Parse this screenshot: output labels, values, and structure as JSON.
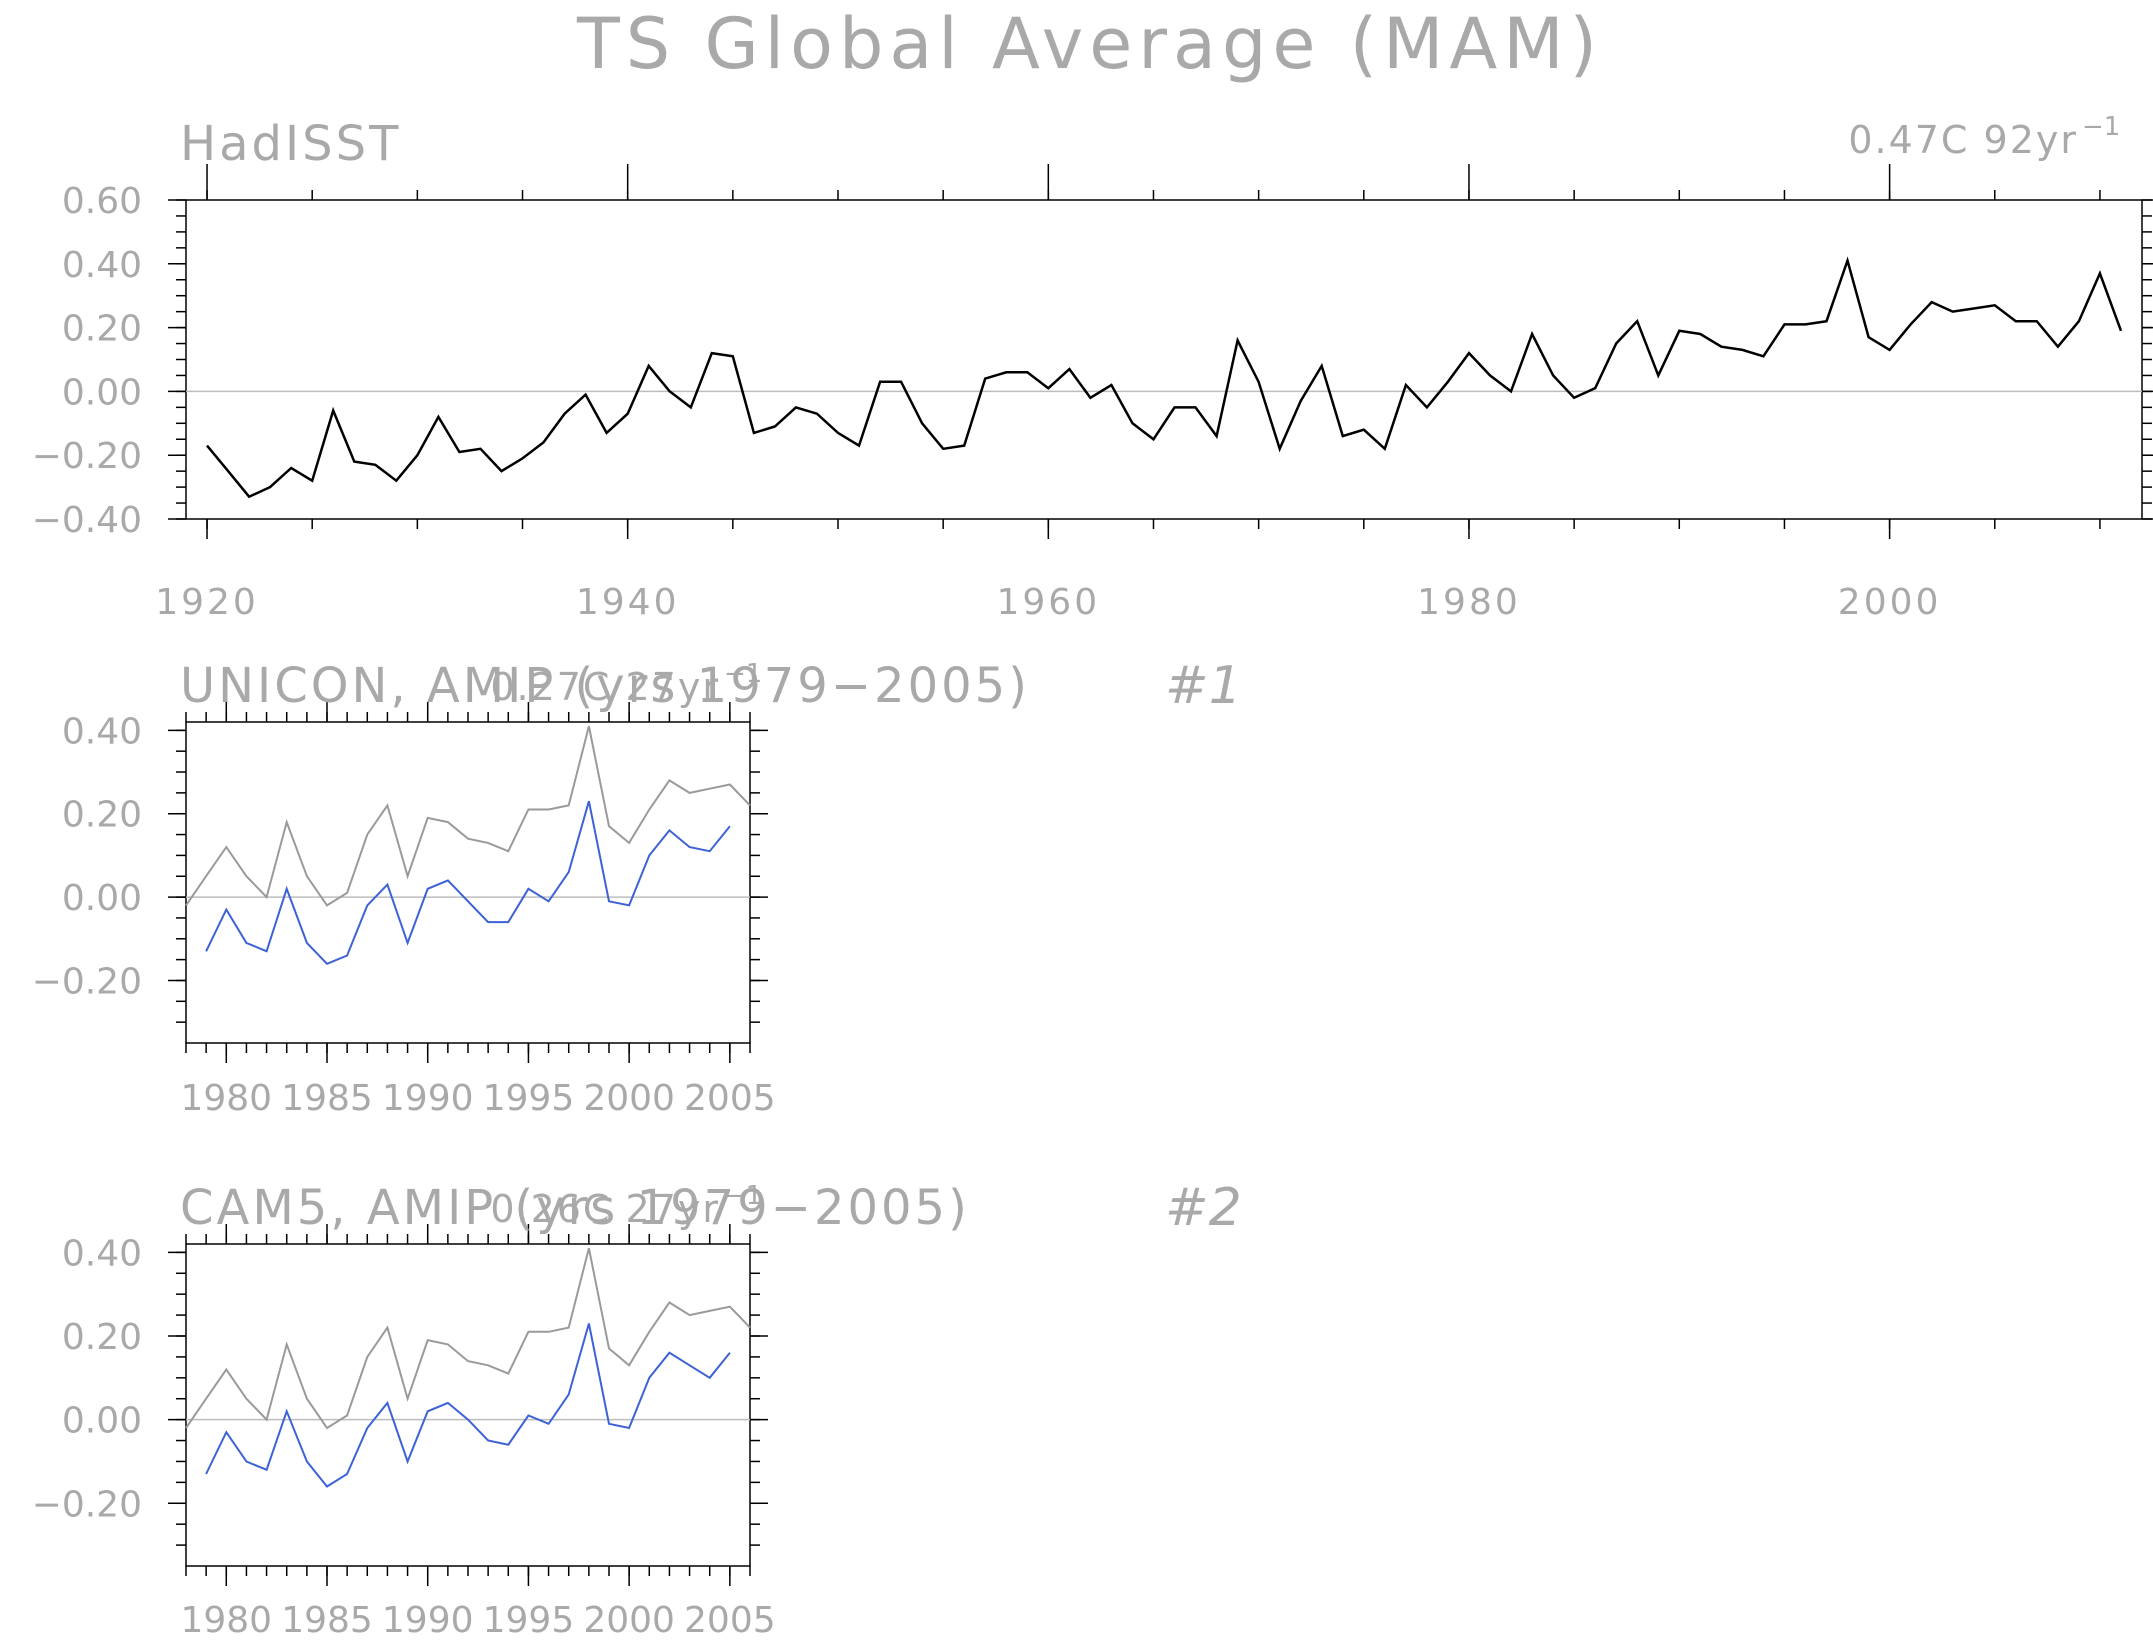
{
  "figure_title": "TS Global Average (MAM)",
  "colors": {
    "text": "#a9a9a9",
    "obs_line_main": "#000000",
    "obs_line_small": "#9a9a9a",
    "model_line": "#3d62d6",
    "zero_line": "#bdbdbd"
  },
  "chart_data": [
    {
      "type": "line",
      "title": "HadISST",
      "trend_text": "0.47C 92yr",
      "trend_exp": "-1",
      "xlabel": "",
      "ylabel": "",
      "xlim": [
        1919,
        2012
      ],
      "ylim": [
        -0.4,
        0.6
      ],
      "x_ticks": [
        1920,
        1940,
        1960,
        1980,
        2000
      ],
      "x_tick_labels": [
        "1920",
        "1940",
        "1960",
        "1980",
        "2000"
      ],
      "y_ticks": [
        0.6,
        0.4,
        0.2,
        0.0,
        -0.2,
        -0.4
      ],
      "y_tick_labels": [
        "0.60",
        "0.40",
        "0.20",
        "0.00",
        "-0.20",
        "-0.40"
      ],
      "legend": "none",
      "grid": false,
      "series": [
        {
          "x_start": 1920,
          "values": [
            -0.17,
            -0.25,
            -0.33,
            -0.3,
            -0.24,
            -0.28,
            -0.06,
            -0.22,
            -0.23,
            -0.28,
            -0.2,
            -0.08,
            -0.19,
            -0.18,
            -0.25,
            -0.21,
            -0.16,
            -0.07,
            -0.01,
            -0.13,
            -0.07,
            0.08,
            0.0,
            -0.05,
            0.12,
            0.11,
            -0.13,
            -0.11,
            -0.05,
            -0.07,
            -0.13,
            -0.17,
            0.03,
            0.03,
            -0.1,
            -0.18,
            -0.17,
            0.04,
            0.06,
            0.06,
            0.01,
            0.07,
            -0.02,
            0.02,
            -0.1,
            -0.15,
            -0.05,
            -0.05,
            -0.14,
            0.16,
            0.03,
            -0.18,
            -0.03,
            0.08,
            -0.14,
            -0.12,
            -0.18,
            0.02,
            -0.05,
            0.03,
            0.12,
            0.05,
            0.0,
            0.18,
            0.05,
            -0.02,
            0.01,
            0.15,
            0.22,
            0.05,
            0.19,
            0.18,
            0.14,
            0.13,
            0.11,
            0.21,
            0.21,
            0.22,
            0.41,
            0.17,
            0.13,
            0.21,
            0.28,
            0.25,
            0.26,
            0.27,
            0.22,
            0.22,
            0.14,
            0.22,
            0.37,
            0.19
          ]
        }
      ]
    },
    {
      "type": "line",
      "title": "UNICON, AMIP (yrs 1979-2005)",
      "case_label": "#1",
      "trend_text": "0.27C 27yr",
      "trend_exp": "-1",
      "xlabel": "",
      "ylabel": "",
      "xlim": [
        1978,
        2006
      ],
      "ylim": [
        -0.35,
        0.42
      ],
      "x_ticks": [
        1980,
        1985,
        1990,
        1995,
        2000,
        2005
      ],
      "x_tick_labels": [
        "1980",
        "1985",
        "1990",
        "1995",
        "2000",
        "2005"
      ],
      "y_ticks": [
        0.4,
        0.2,
        0.0,
        -0.2
      ],
      "y_tick_labels": [
        "0.40",
        "0.20",
        "0.00",
        "-0.20"
      ],
      "legend": "none",
      "grid": false,
      "series": [
        {
          "role": "observations",
          "x_start": 1978,
          "values": [
            -0.02,
            0.05,
            0.12,
            0.05,
            0.0,
            0.18,
            0.05,
            -0.02,
            0.01,
            0.15,
            0.22,
            0.05,
            0.19,
            0.18,
            0.14,
            0.13,
            0.11,
            0.21,
            0.21,
            0.22,
            0.41,
            0.17,
            0.13,
            0.21,
            0.28,
            0.25,
            0.26,
            0.27,
            0.22
          ]
        },
        {
          "role": "model",
          "x_start": 1979,
          "values": [
            -0.13,
            -0.03,
            -0.11,
            -0.13,
            0.02,
            -0.11,
            -0.16,
            -0.14,
            -0.02,
            0.03,
            -0.11,
            0.02,
            0.04,
            -0.01,
            -0.06,
            -0.06,
            0.02,
            -0.01,
            0.06,
            0.23,
            -0.01,
            -0.02,
            0.1,
            0.16,
            0.12,
            0.11,
            0.17
          ]
        }
      ]
    },
    {
      "type": "line",
      "title": "CAM5, AMIP (yrs 1979-2005)",
      "case_label": "#2",
      "trend_text": "0.26C 27yr",
      "trend_exp": "-1",
      "xlabel": "",
      "ylabel": "",
      "xlim": [
        1978,
        2006
      ],
      "ylim": [
        -0.35,
        0.42
      ],
      "x_ticks": [
        1980,
        1985,
        1990,
        1995,
        2000,
        2005
      ],
      "x_tick_labels": [
        "1980",
        "1985",
        "1990",
        "1995",
        "2000",
        "2005"
      ],
      "y_ticks": [
        0.4,
        0.2,
        0.0,
        -0.2
      ],
      "y_tick_labels": [
        "0.40",
        "0.20",
        "0.00",
        "-0.20"
      ],
      "legend": "none",
      "grid": false,
      "series": [
        {
          "role": "observations",
          "x_start": 1978,
          "values": [
            -0.02,
            0.05,
            0.12,
            0.05,
            0.0,
            0.18,
            0.05,
            -0.02,
            0.01,
            0.15,
            0.22,
            0.05,
            0.19,
            0.18,
            0.14,
            0.13,
            0.11,
            0.21,
            0.21,
            0.22,
            0.41,
            0.17,
            0.13,
            0.21,
            0.28,
            0.25,
            0.26,
            0.27,
            0.22
          ]
        },
        {
          "role": "model",
          "x_start": 1979,
          "values": [
            -0.13,
            -0.03,
            -0.1,
            -0.12,
            0.02,
            -0.1,
            -0.16,
            -0.13,
            -0.02,
            0.04,
            -0.1,
            0.02,
            0.04,
            0.0,
            -0.05,
            -0.06,
            0.01,
            -0.01,
            0.06,
            0.23,
            -0.01,
            -0.02,
            0.1,
            0.16,
            0.13,
            0.1,
            0.16
          ]
        }
      ]
    }
  ]
}
